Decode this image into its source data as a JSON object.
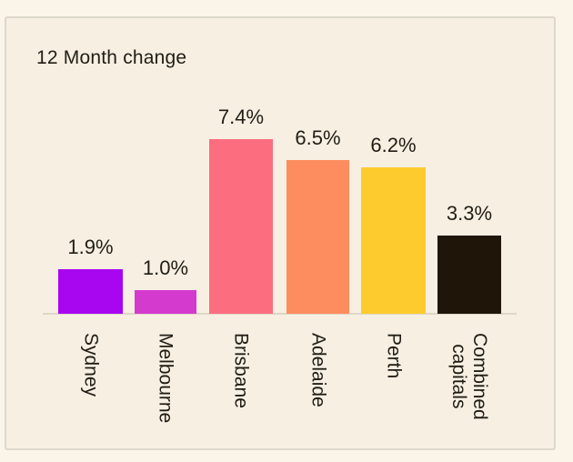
{
  "page": {
    "background": "#faf4e9"
  },
  "card": {
    "background": "#f6efe2",
    "border_color": "#ddd8ca",
    "text_color": "#211d15"
  },
  "chart_data": {
    "type": "bar",
    "title": "12 Month change",
    "categories": [
      "Sydney",
      "Melbourne",
      "Brisbane",
      "Adelaide",
      "Perth",
      "Combined\ncapitals"
    ],
    "values": [
      1.9,
      1.0,
      7.4,
      6.5,
      6.2,
      3.3
    ],
    "value_labels": [
      "1.9%",
      "1.0%",
      "7.4%",
      "6.5%",
      "6.2%",
      "3.3%"
    ],
    "colors": [
      "#a806f0",
      "#d43ace",
      "#fd6d80",
      "#fd8c5f",
      "#fecb2e",
      "#1f1508"
    ],
    "label_color": "#211d15",
    "axis_line_color": "#ddd7c8",
    "xlabel": "",
    "ylabel": "",
    "ylim": [
      0,
      7.4
    ],
    "grid": false,
    "legend": false,
    "category_label_rotation_deg": 90
  }
}
